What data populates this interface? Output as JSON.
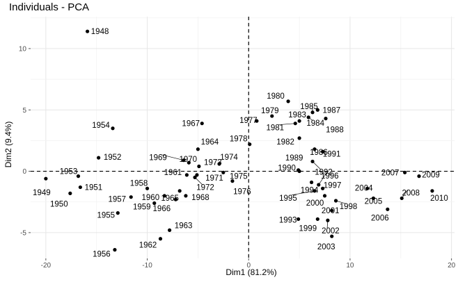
{
  "chart_data": {
    "type": "scatter",
    "title": "Individuals - PCA",
    "xlabel": "Dim1 (81.2%)",
    "ylabel": "Dim2 (9.4%)",
    "xlim": [
      -21.5,
      20.3
    ],
    "ylim": [
      -7.1,
      12.6
    ],
    "x_ticks": [
      -20,
      -10,
      0,
      10,
      20
    ],
    "y_ticks": [
      -5,
      0,
      5,
      10
    ],
    "x_tick_labels": [
      "-20",
      "-10",
      "0",
      "10",
      "20"
    ],
    "y_tick_labels": [
      "-5",
      "0",
      "5",
      "10"
    ],
    "grid": true,
    "reference_lines": {
      "x": 0,
      "y": 0,
      "style": "dashed"
    },
    "points": [
      {
        "label": "1948",
        "x": -15.9,
        "y": 11.4
      },
      {
        "label": "1949",
        "x": -20.0,
        "y": -0.6
      },
      {
        "label": "1950",
        "x": -17.6,
        "y": -1.8
      },
      {
        "label": "1951",
        "x": -16.6,
        "y": -1.3
      },
      {
        "label": "1952",
        "x": -14.8,
        "y": 1.1
      },
      {
        "label": "1953",
        "x": -16.8,
        "y": -0.4
      },
      {
        "label": "1954",
        "x": -13.4,
        "y": 3.5
      },
      {
        "label": "1955",
        "x": -12.9,
        "y": -3.4
      },
      {
        "label": "1956",
        "x": -13.2,
        "y": -6.4
      },
      {
        "label": "1957",
        "x": -11.6,
        "y": -2.1
      },
      {
        "label": "1958",
        "x": -10.0,
        "y": -1.4
      },
      {
        "label": "1959",
        "x": -9.3,
        "y": -2.6
      },
      {
        "label": "1960",
        "x": -8.3,
        "y": -2.0
      },
      {
        "label": "1961",
        "x": -6.1,
        "y": -0.3
      },
      {
        "label": "1962",
        "x": -8.7,
        "y": -5.5
      },
      {
        "label": "1963",
        "x": -7.8,
        "y": -4.8
      },
      {
        "label": "1964",
        "x": -5.0,
        "y": 1.8
      },
      {
        "label": "1965",
        "x": -6.8,
        "y": -1.6
      },
      {
        "label": "1966",
        "x": -7.2,
        "y": -2.3
      },
      {
        "label": "1967",
        "x": -4.6,
        "y": 3.9
      },
      {
        "label": "1968",
        "x": -6.2,
        "y": -2.0
      },
      {
        "label": "1969",
        "x": -6.4,
        "y": 0.9
      },
      {
        "label": "1970",
        "x": -5.9,
        "y": 0.7
      },
      {
        "label": "1971",
        "x": -5.1,
        "y": -0.3
      },
      {
        "label": "1972",
        "x": -5.3,
        "y": -0.5
      },
      {
        "label": "1973",
        "x": -4.9,
        "y": 0.4
      },
      {
        "label": "1974",
        "x": -2.9,
        "y": 0.6
      },
      {
        "label": "1975",
        "x": -2.5,
        "y": -0.1
      },
      {
        "label": "1976",
        "x": -1.6,
        "y": -0.8
      },
      {
        "label": "1977",
        "x": 0.8,
        "y": 4.1
      },
      {
        "label": "1978",
        "x": 0.1,
        "y": 2.2
      },
      {
        "label": "1979",
        "x": 2.3,
        "y": 4.5
      },
      {
        "label": "1980",
        "x": 3.9,
        "y": 5.7
      },
      {
        "label": "1981",
        "x": 4.6,
        "y": 3.9
      },
      {
        "label": "1982",
        "x": 5.0,
        "y": 2.7
      },
      {
        "label": "1983",
        "x": 5.0,
        "y": 4.1
      },
      {
        "label": "1984",
        "x": 5.9,
        "y": 4.4
      },
      {
        "label": "1985",
        "x": 6.3,
        "y": 4.8
      },
      {
        "label": "1986",
        "x": 6.5,
        "y": 1.8
      },
      {
        "label": "1987",
        "x": 6.8,
        "y": 5.0
      },
      {
        "label": "1988",
        "x": 7.6,
        "y": 4.3
      },
      {
        "label": "1989",
        "x": 4.9,
        "y": 0.1
      },
      {
        "label": "1990",
        "x": 5.0,
        "y": 0.0
      },
      {
        "label": "1991",
        "x": 7.3,
        "y": 1.6
      },
      {
        "label": "1992",
        "x": 6.3,
        "y": 0.8
      },
      {
        "label": "1993",
        "x": 4.9,
        "y": -3.9
      },
      {
        "label": "1994",
        "x": 6.2,
        "y": -0.9
      },
      {
        "label": "1995",
        "x": 6.5,
        "y": -1.6
      },
      {
        "label": "1996",
        "x": 6.9,
        "y": -1.1
      },
      {
        "label": "1997",
        "x": 7.3,
        "y": -1.4
      },
      {
        "label": "1998",
        "x": 8.6,
        "y": -2.4
      },
      {
        "label": "1999",
        "x": 6.8,
        "y": -3.9
      },
      {
        "label": "2000",
        "x": 7.5,
        "y": -2.0
      },
      {
        "label": "2001",
        "x": 8.2,
        "y": -3.2
      },
      {
        "label": "2002",
        "x": 7.8,
        "y": -4.0
      },
      {
        "label": "2003",
        "x": 8.2,
        "y": -5.3
      },
      {
        "label": "2004",
        "x": 11.7,
        "y": -1.4
      },
      {
        "label": "2005",
        "x": 12.3,
        "y": -2.2
      },
      {
        "label": "2006",
        "x": 13.7,
        "y": -3.1
      },
      {
        "label": "2007",
        "x": 15.4,
        "y": -0.1
      },
      {
        "label": "2008",
        "x": 15.1,
        "y": -2.2
      },
      {
        "label": "2009",
        "x": 16.8,
        "y": -0.4
      },
      {
        "label": "2010",
        "x": 18.1,
        "y": -1.6
      }
    ]
  }
}
